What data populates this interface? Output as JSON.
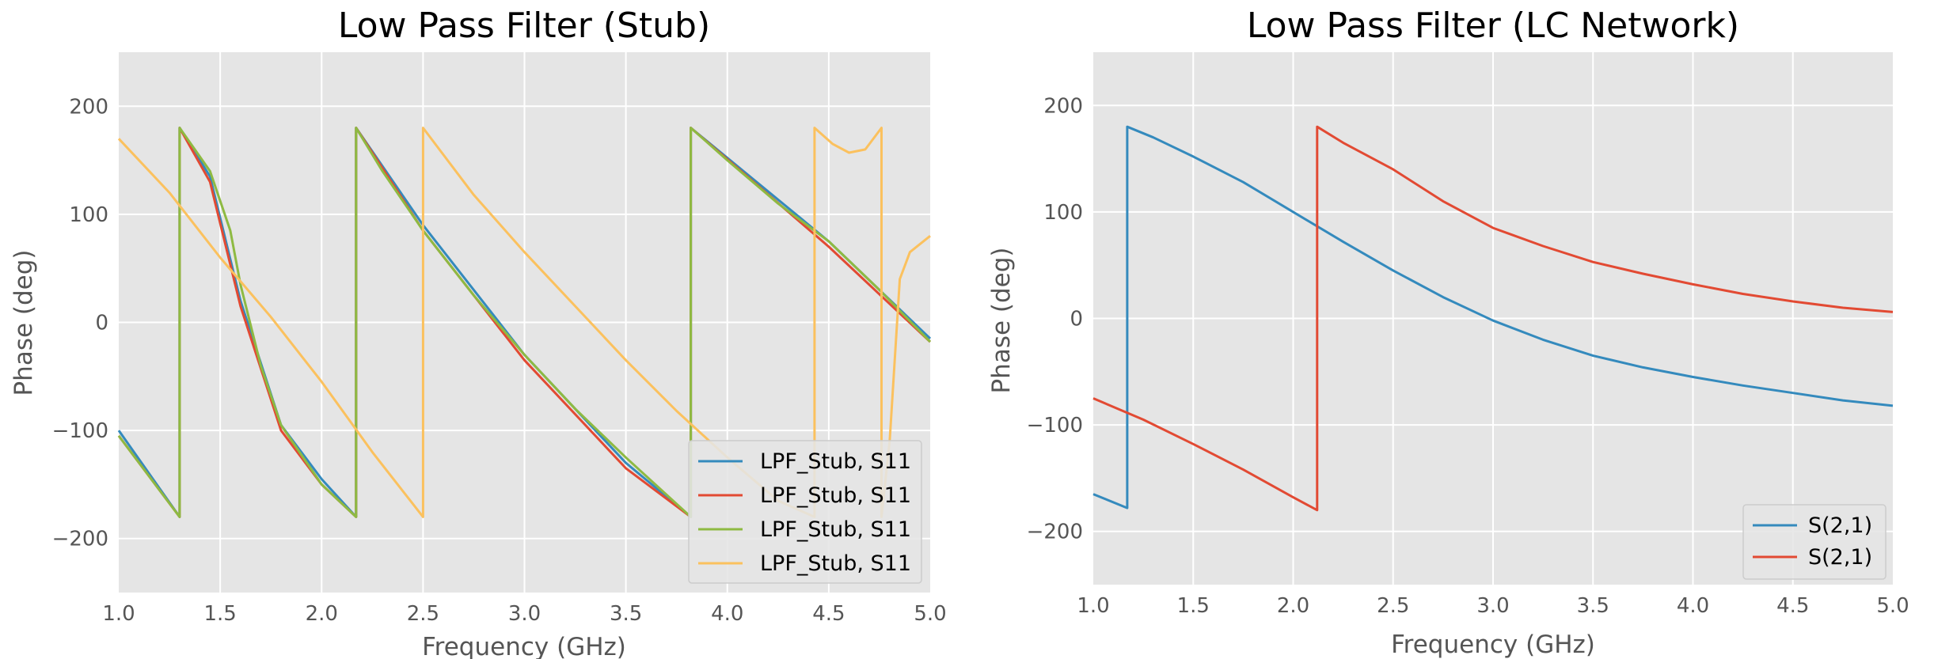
{
  "chart_data": [
    {
      "type": "line",
      "title": "Low Pass Filter (Stub)",
      "xlabel": "Frequency (GHz)",
      "ylabel": "Phase (deg)",
      "xlim": [
        1.0,
        5.0
      ],
      "ylim": [
        -250,
        250
      ],
      "xticks": [
        "1.0",
        "1.5",
        "2.0",
        "2.5",
        "3.0",
        "3.5",
        "4.0",
        "4.5",
        "5.0"
      ],
      "yticks": [
        "200",
        "100",
        "0",
        "−100",
        "−200"
      ],
      "ytick_values": [
        200,
        100,
        0,
        -100,
        -200
      ],
      "grid": true,
      "legend_position": "lower-right",
      "series": [
        {
          "name": "LPF_Stub, S11",
          "color": "#348ABD",
          "x": [
            1.0,
            1.3,
            1.3,
            1.45,
            1.6,
            1.8,
            2.0,
            2.17,
            2.17,
            2.5,
            3.0,
            3.5,
            3.82,
            3.82,
            4.5,
            5.0
          ],
          "y": [
            -100,
            -180,
            180,
            135,
            20,
            -95,
            -145,
            -180,
            180,
            90,
            -30,
            -130,
            -180,
            180,
            75,
            -15
          ]
        },
        {
          "name": "LPF_Stub, S11",
          "color": "#E24A33",
          "x": [
            1.0,
            1.3,
            1.3,
            1.45,
            1.6,
            1.8,
            2.0,
            2.17,
            2.17,
            2.5,
            3.0,
            3.5,
            3.82,
            3.82,
            4.5,
            5.0
          ],
          "y": [
            -105,
            -180,
            180,
            130,
            15,
            -100,
            -150,
            -180,
            180,
            85,
            -35,
            -135,
            -180,
            180,
            70,
            -18
          ]
        },
        {
          "name": "LPF_Stub, S11",
          "color": "#8EBA42",
          "x": [
            1.0,
            1.3,
            1.3,
            1.45,
            1.55,
            1.6,
            1.7,
            1.8,
            2.0,
            2.17,
            2.17,
            2.3,
            2.5,
            2.75,
            3.0,
            3.25,
            3.5,
            3.82,
            3.82,
            4.0,
            4.25,
            4.5,
            4.75,
            5.0
          ],
          "y": [
            -105,
            -180,
            180,
            140,
            85,
            35,
            -40,
            -95,
            -150,
            -180,
            180,
            140,
            85,
            25,
            -30,
            -80,
            -125,
            -180,
            180,
            150,
            110,
            75,
            30,
            -18
          ]
        },
        {
          "name": "LPF_Stub, S11",
          "color": "#FBC15E",
          "x": [
            1.0,
            1.25,
            1.5,
            1.75,
            2.0,
            2.25,
            2.5,
            2.5,
            2.75,
            3.0,
            3.25,
            3.5,
            3.75,
            4.0,
            4.25,
            4.43,
            4.43,
            4.52,
            4.6,
            4.68,
            4.76,
            4.76,
            4.8,
            4.85,
            4.9,
            5.0
          ],
          "y": [
            170,
            120,
            60,
            5,
            -55,
            -120,
            -180,
            180,
            118,
            65,
            15,
            -35,
            -82,
            -125,
            -165,
            -180,
            180,
            165,
            157,
            160,
            180,
            -180,
            -110,
            40,
            65,
            80
          ]
        }
      ]
    },
    {
      "type": "line",
      "title": "Low Pass Filter (LC Network)",
      "xlabel": "Frequency (GHz)",
      "ylabel": "Phase (deg)",
      "xlim": [
        1.0,
        5.0
      ],
      "ylim": [
        -250,
        250
      ],
      "xticks": [
        "1.0",
        "1.5",
        "2.0",
        "2.5",
        "3.0",
        "3.5",
        "4.0",
        "4.5",
        "5.0"
      ],
      "yticks": [
        "200",
        "100",
        "0",
        "−100",
        "−200"
      ],
      "ytick_values": [
        200,
        100,
        0,
        -100,
        -200
      ],
      "grid": true,
      "legend_position": "lower-right",
      "series": [
        {
          "name": "S(2,1)",
          "color": "#348ABD",
          "x": [
            1.0,
            1.17,
            1.17,
            1.3,
            1.5,
            1.75,
            2.0,
            2.25,
            2.5,
            2.75,
            3.0,
            3.25,
            3.5,
            3.75,
            4.0,
            4.25,
            4.5,
            4.75,
            5.0
          ],
          "y": [
            -165,
            -178,
            180,
            170,
            152,
            128,
            100,
            72,
            45,
            20,
            -2,
            -20,
            -35,
            -46,
            -55,
            -63,
            -70,
            -77,
            -82
          ]
        },
        {
          "name": "S(2,1)",
          "color": "#E24A33",
          "x": [
            1.0,
            1.25,
            1.5,
            1.75,
            2.0,
            2.12,
            2.12,
            2.25,
            2.5,
            2.75,
            3.0,
            3.25,
            3.5,
            3.75,
            4.0,
            4.25,
            4.5,
            4.75,
            5.0
          ],
          "y": [
            -75,
            -95,
            -118,
            -142,
            -168,
            -180,
            180,
            165,
            140,
            110,
            85,
            68,
            53,
            42,
            32,
            23,
            16,
            10,
            6
          ]
        }
      ]
    }
  ]
}
